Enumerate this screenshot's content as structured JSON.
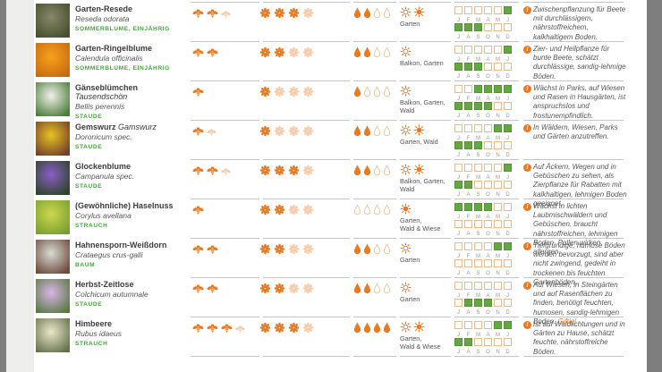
{
  "app": {
    "background": "#7e7e7e",
    "page_bg": "#ffffff",
    "left_strip": "#eeeeec"
  },
  "colors": {
    "accent_orange": "#e87a24",
    "green_text": "#3faa35",
    "cal_green": "#63a73f",
    "cal_empty_border": "#e7bb8e",
    "divider": "#c6c6c4",
    "name_text": "#3c3c3b",
    "muted_text": "#575756",
    "month_letter": "#9b9b9b"
  },
  "icons": {
    "info_glyph": "i",
    "bee": "bee-icon",
    "flower": "flower-icon",
    "drop": "water-drop-icon",
    "sun_full": "sun-icon",
    "sun_partial": "partial-sun-icon"
  },
  "calendar": {
    "first_half": [
      "J",
      "F",
      "M",
      "A",
      "M",
      "J"
    ],
    "second_half": [
      "J",
      "A",
      "S",
      "O",
      "N",
      "D"
    ]
  },
  "rows": [
    {
      "name": "Garten-Resede",
      "name_italic": "",
      "latin": "Reseda odorata",
      "category": "SOMMERBLUME, EINJÄHRIG",
      "bees_full": 2,
      "bees_faded": 1,
      "flowers_full": 3,
      "flowers_total": 4,
      "drops_full": 2,
      "drops_total": 4,
      "sun_partial": true,
      "sun_full": true,
      "locations": "Garten",
      "months_first": [
        0,
        0,
        0,
        0,
        0,
        1
      ],
      "months_second": [
        1,
        1,
        1,
        0,
        0,
        0
      ],
      "info": "Zwischenpflanzung für Beete mit durchlässigem, nährstoffreichem, kalkhaltigem Boden.",
      "info_warning": "",
      "photo": [
        "#8a8668",
        "#44502f"
      ]
    },
    {
      "name": "Garten-Ringelblume",
      "name_italic": "",
      "latin": "Calendula officinalis",
      "category": "SOMMERBLUME, EINJÄHRIG",
      "bees_full": 2,
      "bees_faded": 0,
      "flowers_full": 2,
      "flowers_total": 4,
      "drops_full": 2,
      "drops_total": 4,
      "sun_partial": true,
      "sun_full": false,
      "locations": "Balkon, Garten",
      "months_first": [
        0,
        0,
        0,
        0,
        0,
        1
      ],
      "months_second": [
        1,
        1,
        1,
        0,
        0,
        0
      ],
      "info": "Zier- und Heilpflanze für bunte Beete, schätzt durchlässige, sandig-lehmige Böden.",
      "info_warning": "",
      "photo": [
        "#f6a21c",
        "#c96a10"
      ]
    },
    {
      "name": "Gänseblümchen",
      "name_italic": "Tausendschön",
      "latin": "Bellis perennis",
      "category": "STAUDE",
      "bees_full": 1,
      "bees_faded": 0,
      "flowers_full": 1,
      "flowers_total": 4,
      "drops_full": 1,
      "drops_total": 4,
      "sun_partial": true,
      "sun_full": false,
      "locations": "Balkon, Garten,\nWald",
      "months_first": [
        0,
        0,
        1,
        1,
        1,
        1
      ],
      "months_second": [
        1,
        1,
        1,
        1,
        0,
        0
      ],
      "info": "Wächst in Parks, auf Wiesen und Rasen in Hausgärten, ist anspruchslos und frostunempfindlich.",
      "info_warning": "",
      "photo": [
        "#f2f0e8",
        "#4c7d3c"
      ]
    },
    {
      "name": "Gemswurz",
      "name_italic": "Gamswurz",
      "latin": "Doronicum spec.",
      "category": "STAUDE",
      "bees_full": 1,
      "bees_faded": 1,
      "flowers_full": 1,
      "flowers_total": 4,
      "drops_full": 2,
      "drops_total": 4,
      "sun_partial": true,
      "sun_full": true,
      "locations": "Garten, Wald",
      "months_first": [
        0,
        0,
        0,
        0,
        1,
        1
      ],
      "months_second": [
        1,
        1,
        1,
        0,
        0,
        0
      ],
      "info": "In Wäldern, Wiesen, Parks und Gärten anzutreffen.",
      "info_warning": "",
      "photo": [
        "#e9c222",
        "#70412c"
      ]
    },
    {
      "name": "Glockenblume",
      "name_italic": "",
      "latin": "Campanula spec.",
      "category": "STAUDE",
      "bees_full": 2,
      "bees_faded": 1,
      "flowers_full": 3,
      "flowers_total": 4,
      "drops_full": 2,
      "drops_total": 4,
      "sun_partial": true,
      "sun_full": true,
      "locations": "Balkon, Garten,\nWald",
      "months_first": [
        0,
        0,
        0,
        0,
        0,
        1
      ],
      "months_second": [
        1,
        1,
        0,
        0,
        0,
        0
      ],
      "info": "Auf Äckern, Wegen und in Gebüschen zu sehen, als Zierpflanze für Rabatten mit kalkhaltigen, lehmigen Boden geeignet.",
      "info_warning": "",
      "photo": [
        "#8a5ec9",
        "#2c4527"
      ]
    },
    {
      "name": "(Gewöhnliche) Haselnuss",
      "name_italic": "",
      "latin": "Corylus avellana",
      "category": "STRAUCH",
      "bees_full": 1,
      "bees_faded": 0,
      "flowers_full": 2,
      "flowers_total": 4,
      "drops_full": 0,
      "drops_total": 4,
      "sun_partial": false,
      "sun_full": true,
      "locations": "Garten,\nWald & Wiese",
      "months_first": [
        1,
        1,
        1,
        1,
        0,
        0
      ],
      "months_second": [
        0,
        0,
        0,
        0,
        0,
        0
      ],
      "info": "Wächst in lichten Laubmischwäldern und Gebüschen, braucht nährstoffreichen, lehmigen Boden, Pollen wirken allergen.",
      "info_warning": "",
      "photo": [
        "#cdd74f",
        "#79a02f"
      ]
    },
    {
      "name": "Hahnensporn-Weißdorn",
      "name_italic": "",
      "latin": "Crataegus crus-galli",
      "category": "BAUM",
      "bees_full": 2,
      "bees_faded": 0,
      "flowers_full": 2,
      "flowers_total": 4,
      "drops_full": 2,
      "drops_total": 4,
      "sun_partial": true,
      "sun_full": false,
      "locations": "Garten",
      "months_first": [
        0,
        0,
        0,
        0,
        1,
        1
      ],
      "months_second": [
        0,
        0,
        0,
        0,
        0,
        0
      ],
      "info": "Tiefgründige, humose Böden werden bevorzugt, sind aber nicht zwingend, gedeiht in trockenen bis feuchten Gartenböden.",
      "info_warning": "",
      "photo": [
        "#d8dcd4",
        "#6d4a3c"
      ]
    },
    {
      "name": "Herbst-Zeitlose",
      "name_italic": "",
      "latin": "Colchicum autumnale",
      "category": "STAUDE",
      "bees_full": 2,
      "bees_faded": 0,
      "flowers_full": 2,
      "flowers_total": 4,
      "drops_full": 2,
      "drops_total": 4,
      "sun_partial": true,
      "sun_full": false,
      "locations": "Garten",
      "months_first": [
        0,
        0,
        0,
        0,
        0,
        0
      ],
      "months_second": [
        0,
        1,
        1,
        1,
        0,
        0
      ],
      "info": "Auf Wiesen, in Steingärten und auf Rasenflächen zu finden, benötigt feuchten, humosen, sandig-lehmigen Boden.",
      "info_warning": "Giftig!",
      "photo": [
        "#d9b5e6",
        "#597a45"
      ]
    },
    {
      "name": "Himbeere",
      "name_italic": "",
      "latin": "Rubus idaeus",
      "category": "STRAUCH",
      "bees_full": 3,
      "bees_faded": 1,
      "flowers_full": 3,
      "flowers_total": 4,
      "drops_full": 4,
      "drops_total": 4,
      "sun_partial": true,
      "sun_full": true,
      "locations": "Garten,\nWald & Wiese",
      "months_first": [
        0,
        0,
        0,
        0,
        1,
        1
      ],
      "months_second": [
        1,
        1,
        0,
        0,
        0,
        0
      ],
      "info": "Ist auf Waldlichtungen und in Gärten zu Hause, schätzt feuchte, nährstoffreiche Böden.",
      "info_warning": "",
      "photo": [
        "#ece6cc",
        "#64734a"
      ]
    }
  ]
}
